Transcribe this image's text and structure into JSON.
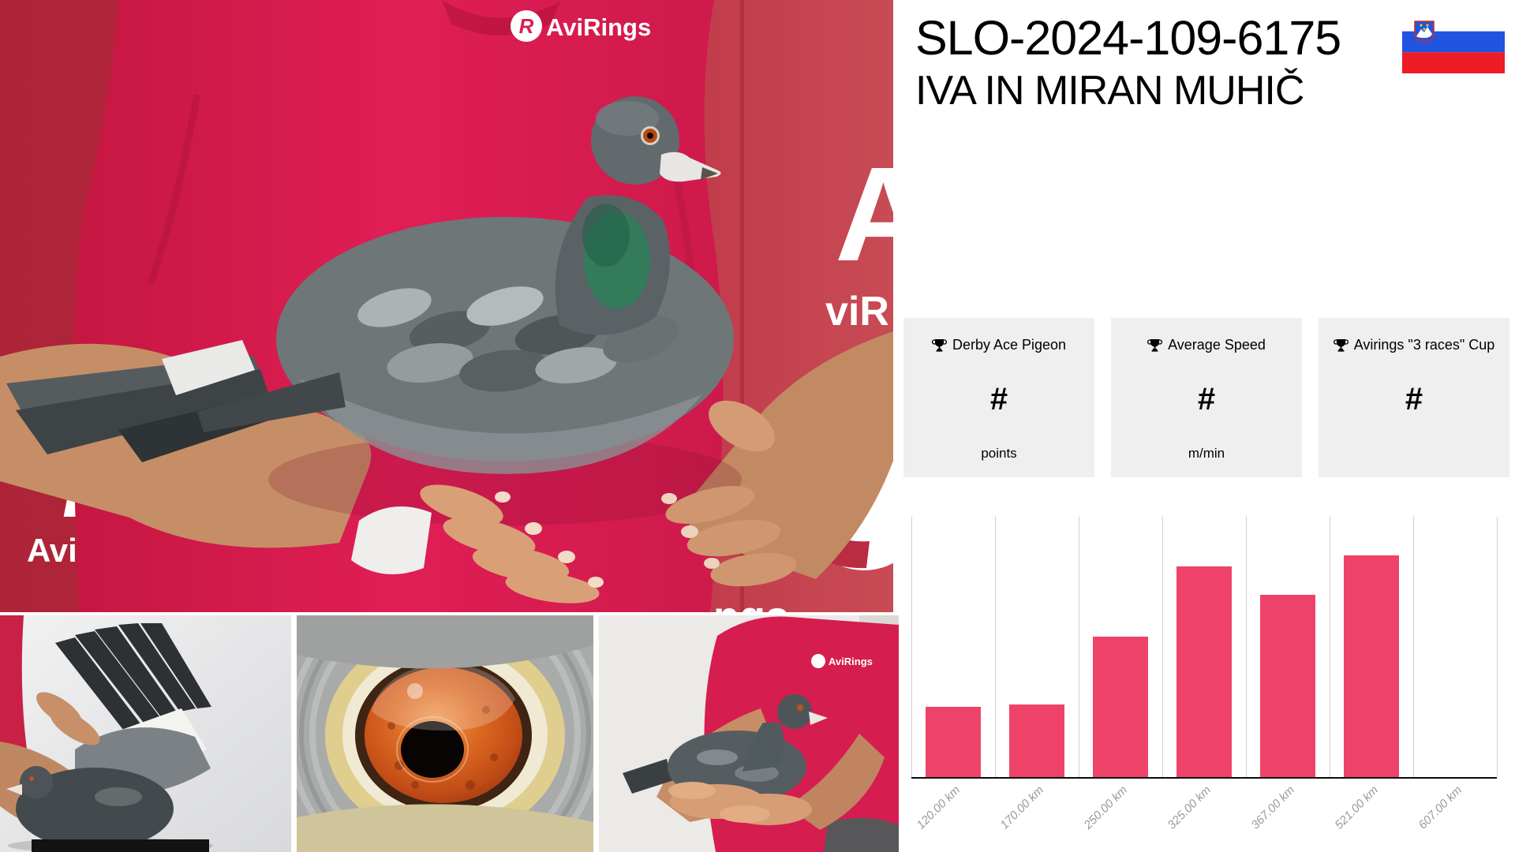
{
  "header": {
    "ring_number": "SLO-2024-109-6175",
    "owner_name": "IVA IN MIRAN MUHIČ",
    "flag_country": "Slovenia"
  },
  "stat_cards": [
    {
      "icon": "trophy-icon",
      "title": "Derby Ace Pigeon",
      "value": "#",
      "unit": "points"
    },
    {
      "icon": "trophy-icon",
      "title": "Average Speed",
      "value": "#",
      "unit": "m/min"
    },
    {
      "icon": "trophy-icon",
      "title": "Avirings \"3 races\" Cup",
      "value": "#",
      "unit": ""
    }
  ],
  "chart_data": {
    "type": "bar",
    "title": "",
    "xlabel": "",
    "ylabel": "",
    "categories": [
      "120.00 km",
      "170.00 km",
      "250.00 km",
      "325.00 km",
      "367.00 km",
      "521.00 km",
      "607.00 km"
    ],
    "values": [
      27,
      28,
      54,
      81,
      70,
      85,
      0
    ],
    "value_scale": "percent of plot height (no y-axis labels shown on screen, heights estimated)",
    "ylim": [
      0,
      100
    ],
    "grid": "vertical gridlines only",
    "legend": "none",
    "bar_color": "#ee4268",
    "tick_label_style": "italic gray rotated 45deg"
  },
  "photo_overlays": {
    "logo_text": "AviRings",
    "monogram": "R",
    "partial_right": "viR",
    "partial_bottom": "Rings"
  },
  "colors": {
    "accent_pink": "#ee4268",
    "card_bg": "#efefef",
    "grid_line": "#cfcfcf",
    "axis_line": "#0a0a0a",
    "tick_label": "#999999",
    "flag_blue": "#1f55e0",
    "flag_red": "#ee1c25",
    "backdrop_red": "#b92c42",
    "shirt_crimson": "#d81d52"
  }
}
